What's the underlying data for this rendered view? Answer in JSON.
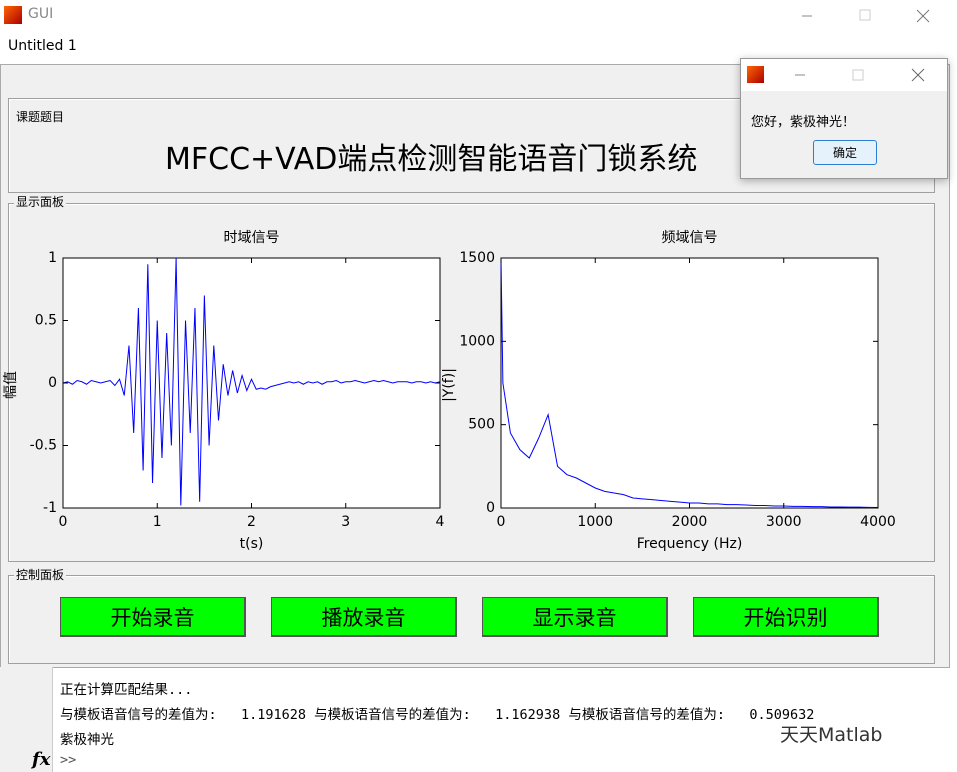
{
  "window": {
    "title": "GUI",
    "menu": "Untitled 1"
  },
  "title_panel": {
    "label": "课题题目",
    "text": "MFCC+VAD端点检测智能语音门锁系统"
  },
  "display_panel": {
    "label": "显示面板"
  },
  "control_panel": {
    "label": "控制面板",
    "buttons": [
      "开始录音",
      "播放录音",
      "显示录音",
      "开始识别"
    ]
  },
  "chart_data": [
    {
      "type": "line",
      "title": "时域信号",
      "x_label": "t(s)",
      "y_label": "幅值",
      "x": [
        0,
        0.05,
        0.1,
        0.15,
        0.2,
        0.25,
        0.3,
        0.35,
        0.4,
        0.45,
        0.5,
        0.55,
        0.6,
        0.65,
        0.7,
        0.75,
        0.8,
        0.85,
        0.9,
        0.95,
        1.0,
        1.05,
        1.1,
        1.15,
        1.2,
        1.25,
        1.3,
        1.35,
        1.4,
        1.45,
        1.5,
        1.55,
        1.6,
        1.65,
        1.7,
        1.75,
        1.8,
        1.85,
        1.9,
        1.95,
        2.0,
        2.05,
        2.1,
        2.15,
        2.2,
        2.25,
        2.3,
        2.35,
        2.4,
        2.45,
        2.5,
        2.55,
        2.6,
        2.65,
        2.7,
        2.75,
        2.8,
        2.85,
        2.9,
        2.95,
        3.0,
        3.05,
        3.1,
        3.15,
        3.2,
        3.25,
        3.3,
        3.35,
        3.4,
        3.45,
        3.5,
        3.55,
        3.6,
        3.65,
        3.7,
        3.75,
        3.8,
        3.85,
        3.9,
        3.95,
        4.0
      ],
      "series": [
        {
          "color": "#0000ff",
          "values": [
            0,
            0.01,
            -0.01,
            0.02,
            0.01,
            -0.01,
            0.02,
            0.01,
            0.0,
            0.01,
            0.02,
            -0.02,
            0.03,
            -0.1,
            0.3,
            -0.4,
            0.6,
            -0.7,
            0.95,
            -0.8,
            0.5,
            -0.6,
            0.4,
            -0.5,
            1.0,
            -0.98,
            0.5,
            -0.4,
            0.6,
            -0.95,
            0.7,
            -0.5,
            0.3,
            -0.3,
            0.15,
            -0.1,
            0.1,
            -0.08,
            0.06,
            -0.06,
            0.03,
            -0.05,
            -0.04,
            -0.05,
            -0.03,
            -0.02,
            -0.01,
            0.0,
            0.01,
            0.0,
            0.01,
            -0.01,
            0.01,
            0.0,
            0.01,
            -0.01,
            0.01,
            0.01,
            0.02,
            0.0,
            0.01,
            0.01,
            0.02,
            0.01,
            0.0,
            0.01,
            0.02,
            0.01,
            0.02,
            0.01,
            0.0,
            0.01,
            0.01,
            0.01,
            0.0,
            0.01,
            0.01,
            0.0,
            0.01,
            0.0,
            0.01
          ]
        }
      ],
      "xlim": [
        0,
        4
      ],
      "ylim": [
        -1,
        1
      ],
      "xticks": [
        0,
        1,
        2,
        3,
        4
      ],
      "yticks": [
        -1,
        -0.5,
        0,
        0.5,
        1
      ]
    },
    {
      "type": "line",
      "title": "频域信号",
      "x_label": "Frequency (Hz)",
      "y_label": "|Y(f)|",
      "x": [
        0,
        20,
        100,
        200,
        300,
        400,
        500,
        600,
        700,
        800,
        900,
        1000,
        1100,
        1200,
        1300,
        1400,
        1500,
        1600,
        1700,
        1800,
        1900,
        2000,
        2100,
        2200,
        2300,
        2400,
        2500,
        2600,
        2700,
        2800,
        2900,
        3000,
        3100,
        3200,
        3300,
        3400,
        3500,
        3600,
        3700,
        3800,
        3900,
        4000
      ],
      "series": [
        {
          "color": "#0000ff",
          "values": [
            1500,
            750,
            450,
            350,
            300,
            420,
            560,
            250,
            200,
            180,
            150,
            120,
            100,
            90,
            80,
            60,
            55,
            50,
            45,
            40,
            35,
            30,
            30,
            25,
            25,
            20,
            20,
            18,
            15,
            15,
            12,
            12,
            10,
            10,
            8,
            8,
            6,
            6,
            5,
            5,
            4,
            3
          ]
        }
      ],
      "xlim": [
        0,
        4000
      ],
      "ylim": [
        0,
        1500
      ],
      "xticks": [
        0,
        1000,
        2000,
        3000,
        4000
      ],
      "yticks": [
        0,
        500,
        1000,
        1500
      ]
    }
  ],
  "command_window": {
    "lines": [
      "正在计算匹配结果...",
      "与模板语音信号的差值为:   1.191628 与模板语音信号的差值为:   1.162938 与模板语音信号的差值为:   0.509632",
      "紫极神光"
    ],
    "fx": "fx",
    "prompt": ">>"
  },
  "dialog": {
    "message": "您好，紫极神光！",
    "button": "确定"
  },
  "watermark": "天天Matlab"
}
